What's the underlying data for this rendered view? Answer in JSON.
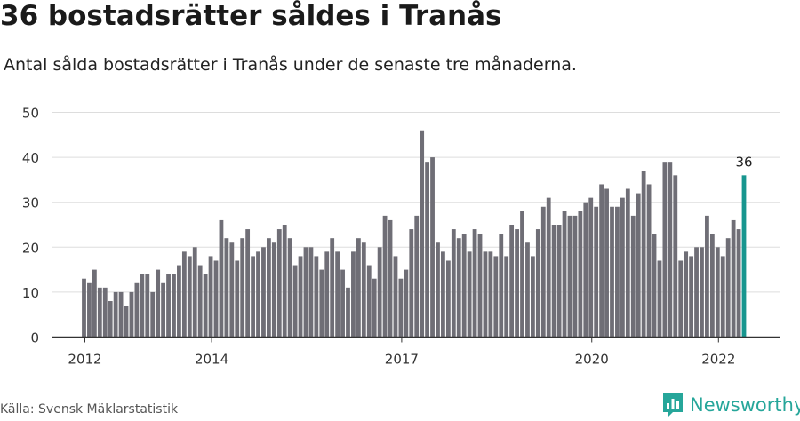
{
  "header": {
    "title": "36 bostadsrätter såldes i Tranås",
    "subtitle": "Antal sålda bostadsrätter i Tranås under de senaste tre månaderna."
  },
  "footer": {
    "source": "Källa: Svensk Mäklarstatistik",
    "brand": "Newsworthy",
    "brand_icon": "newsworthy-logo-icon"
  },
  "colors": {
    "bar": "#6f6e76",
    "highlight": "#17968f",
    "grid": "#dddddd",
    "axis": "#333333",
    "brand": "#26a69a"
  },
  "chart_data": {
    "type": "bar",
    "ylim": [
      0,
      50
    ],
    "yticks": [
      0,
      10,
      20,
      30,
      40,
      50
    ],
    "xticks": [
      "2012",
      "2014",
      "2017",
      "2020",
      "2022"
    ],
    "grid": true,
    "highlight_label": "36",
    "values": [
      13,
      12,
      15,
      11,
      11,
      8,
      10,
      10,
      7,
      10,
      12,
      14,
      14,
      10,
      15,
      12,
      14,
      14,
      16,
      19,
      18,
      20,
      16,
      14,
      18,
      17,
      26,
      22,
      21,
      17,
      22,
      24,
      18,
      19,
      20,
      22,
      21,
      24,
      25,
      22,
      16,
      18,
      20,
      20,
      18,
      15,
      19,
      22,
      19,
      15,
      11,
      19,
      22,
      21,
      16,
      13,
      20,
      27,
      26,
      18,
      13,
      15,
      24,
      27,
      46,
      39,
      40,
      21,
      19,
      17,
      24,
      22,
      23,
      19,
      24,
      23,
      19,
      19,
      18,
      23,
      18,
      25,
      24,
      28,
      21,
      18,
      24,
      29,
      31,
      25,
      25,
      28,
      27,
      27,
      28,
      30,
      31,
      29,
      34,
      33,
      29,
      29,
      31,
      33,
      27,
      32,
      37,
      34,
      23,
      17,
      39,
      39,
      36,
      17,
      19,
      18,
      20,
      20,
      27,
      23,
      20,
      18,
      22,
      26,
      24,
      36
    ]
  }
}
